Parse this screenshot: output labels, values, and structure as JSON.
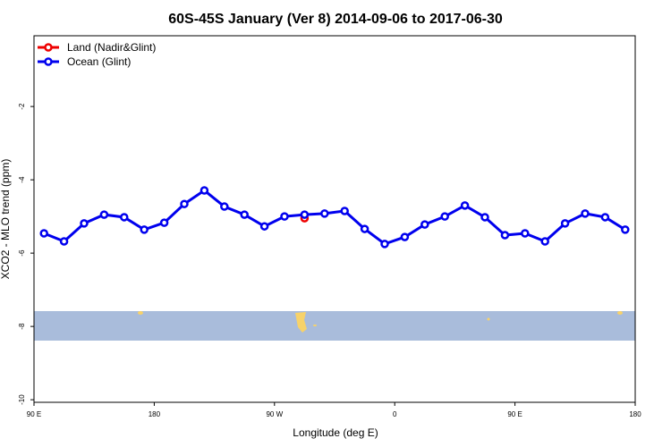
{
  "chart_data": {
    "type": "line",
    "title": "60S-45S January (Ver 8)   2014-09-06 to 2017-06-30",
    "x_label": "Longitude (deg E)",
    "y_label": "XCO2 - MLO trend (ppm)",
    "xlim": [
      90,
      540
    ],
    "ylim": [
      -10.07,
      -0.07
    ],
    "xticks": [
      {
        "value": 90,
        "label": "90 E"
      },
      180,
      {
        "value": 270,
        "label": "90 W"
      },
      {
        "value": 360,
        "label": "0"
      },
      {
        "value": 450,
        "label": "90 E"
      },
      {
        "value": 540,
        "label": "180"
      }
    ],
    "yticks": [
      -10,
      -8,
      -6,
      -4,
      -2
    ],
    "legend": "top-left",
    "series": [
      {
        "name": "Land (Nadir&Glint)",
        "color": "#ee0000",
        "x": [
          292.5
        ],
        "values": [
          -5.05
        ]
      },
      {
        "name": "Ocean (Glint)",
        "color": "#0000ee",
        "x": [
          97.5,
          112.5,
          127.5,
          142.5,
          157.5,
          172.5,
          187.5,
          202.5,
          217.5,
          232.5,
          247.5,
          262.5,
          277.5,
          292.5,
          307.5,
          322.5,
          337.5,
          352.5,
          367.5,
          382.5,
          397.5,
          412.5,
          427.5,
          442.5,
          457.5,
          472.5,
          487.5,
          502.5,
          517.5,
          532.5
        ],
        "values": [
          -5.46,
          -5.68,
          -5.19,
          -4.95,
          -5.02,
          -5.36,
          -5.17,
          -4.66,
          -4.29,
          -4.73,
          -4.95,
          -5.27,
          -5.0,
          -4.95,
          -4.92,
          -4.85,
          -5.34,
          -5.75,
          -5.56,
          -5.22,
          -5.0,
          -4.7,
          -5.02,
          -5.51,
          -5.46,
          -5.68,
          -5.19,
          -4.92,
          -5.02,
          -5.36
        ]
      }
    ]
  }
}
